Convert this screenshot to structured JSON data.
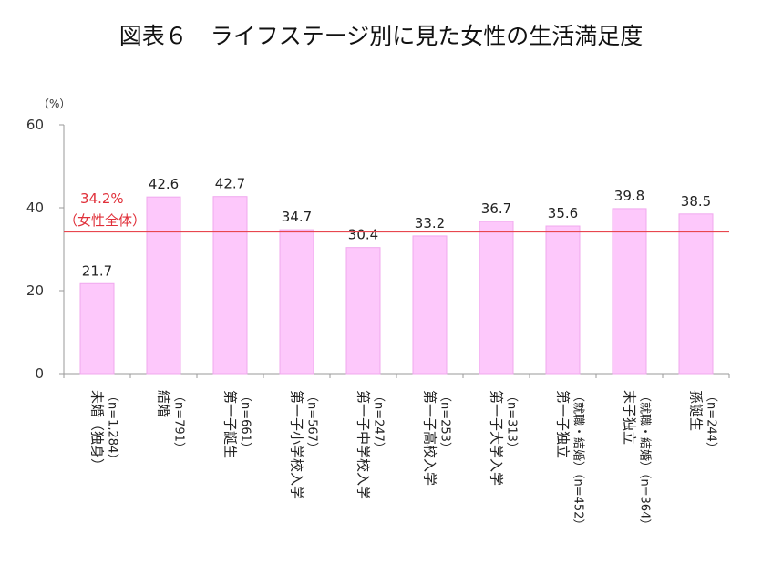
{
  "chart_data": {
    "type": "bar",
    "title": "図表６　ライフステージ別に見た女性の生活満足度",
    "y_unit": "（%）",
    "ylim": [
      0,
      60
    ],
    "yticks": [
      0,
      20,
      40,
      60
    ],
    "grid": false,
    "categories": [
      {
        "label": "未婚（独身）",
        "n": "（n=1,284）"
      },
      {
        "label": "結婚",
        "n": "（n=791）"
      },
      {
        "label": "第一子誕生",
        "n": "（n=661）"
      },
      {
        "label": "第一子小学校入学",
        "n": "（n=567）"
      },
      {
        "label": "第一子中学校入学",
        "n": "（n=247）"
      },
      {
        "label": "第一子高校入学",
        "n": "（n=253）"
      },
      {
        "label": "第一子大学入学",
        "n": "（n=313）"
      },
      {
        "label": "第一子独立",
        "n": "（就職・結婚）（n=452）"
      },
      {
        "label": "末子独立",
        "n": "（就職・結婚）（n=364）"
      },
      {
        "label": "孫誕生",
        "n": "（n=244）"
      }
    ],
    "values": [
      21.7,
      42.6,
      42.7,
      34.7,
      30.4,
      33.2,
      36.7,
      35.6,
      39.8,
      38.5
    ],
    "value_labels": [
      "21.7",
      "42.6",
      "42.7",
      "34.7",
      "30.4",
      "33.2",
      "36.7",
      "35.6",
      "39.8",
      "38.5"
    ],
    "reference_line": {
      "value": 34.2,
      "label": "34.2%",
      "sublabel": "（女性全体）"
    },
    "colors": {
      "bar_fill": "#fdc8fb",
      "bar_stroke": "#f0a8ee",
      "reference": "#e8474f",
      "axis": "#9a9a9a"
    }
  }
}
